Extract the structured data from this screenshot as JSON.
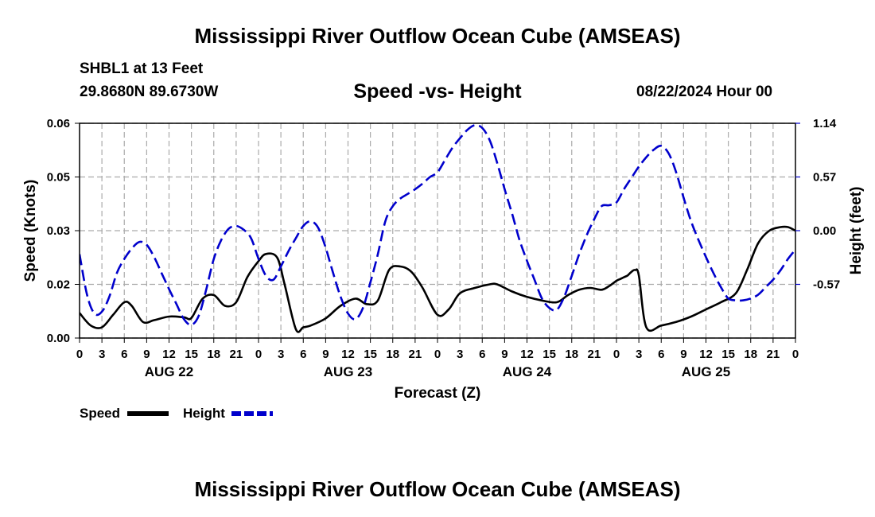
{
  "header": {
    "title": "Mississippi River Outflow Ocean Cube (AMSEAS)",
    "station": "SHBL1 at 13 Feet",
    "coords": "29.8680N  89.6730W",
    "subtitle": "Speed -vs- Height",
    "timestamp": "08/22/2024 Hour 00"
  },
  "footer": {
    "title": "Mississippi River Outflow Ocean Cube (AMSEAS)"
  },
  "chart_data": {
    "type": "line",
    "title": "Speed -vs- Height",
    "xlabel": "Forecast (Z)",
    "ylabel_left": "Speed (Knots)",
    "ylabel_right": "Height (feet)",
    "x_range_hours": [
      0,
      96
    ],
    "ylim_left": [
      0.0,
      0.06
    ],
    "ylim_right": [
      -1.14,
      1.14
    ],
    "left_ticks": [
      0.0,
      0.015,
      0.03,
      0.045,
      0.06
    ],
    "left_tick_labels": [
      "0.00",
      "0.02",
      "0.03",
      "0.05",
      "0.06"
    ],
    "right_ticks": [
      1.14,
      0.57,
      0.0,
      -0.57
    ],
    "right_tick_labels": [
      "1.14",
      "0.57",
      "0.00",
      "-0.57"
    ],
    "x_tick_labels": [
      "0",
      "3",
      "6",
      "9",
      "12",
      "15",
      "18",
      "21",
      "0",
      "3",
      "6",
      "9",
      "12",
      "15",
      "18",
      "21",
      "0",
      "3",
      "6",
      "9",
      "12",
      "15",
      "18",
      "21",
      "0",
      "3",
      "6",
      "9",
      "12",
      "15",
      "18",
      "21",
      "0"
    ],
    "days": [
      {
        "label": "AUG 22",
        "center_hour": 12
      },
      {
        "label": "AUG 23",
        "center_hour": 36
      },
      {
        "label": "AUG 24",
        "center_hour": 60
      },
      {
        "label": "AUG 25",
        "center_hour": 84
      }
    ],
    "grid": true,
    "colors": {
      "speed": "#000000",
      "height": "#0000cc",
      "grid": "#aaaaaa"
    },
    "legend": [
      {
        "label": "Speed",
        "series": "speed",
        "style": "solid"
      },
      {
        "label": "Height",
        "series": "height",
        "style": "dashed"
      }
    ],
    "series": [
      {
        "name": "Speed",
        "axis": "left",
        "units": "knots",
        "x": [
          0,
          1.5,
          3,
          4.5,
          6,
          7,
          8.5,
          10,
          12,
          14,
          15,
          16.5,
          18,
          19.5,
          21,
          22.5,
          24,
          25,
          26.5,
          27.5,
          29,
          30,
          31,
          33,
          35,
          37,
          38.5,
          40,
          41.5,
          43,
          44.5,
          46,
          48,
          49.5,
          51,
          53,
          55,
          56,
          58,
          60,
          62,
          64,
          65.5,
          67,
          68.5,
          70,
          71,
          72,
          72.5,
          73,
          73.5,
          74,
          74.5,
          75,
          76,
          78,
          80,
          82,
          84,
          86,
          88,
          89.5,
          91,
          92.5,
          94,
          95,
          96
        ],
        "values": [
          0.007,
          0.0035,
          0.003,
          0.0065,
          0.01,
          0.009,
          0.0045,
          0.005,
          0.006,
          0.0058,
          0.0056,
          0.011,
          0.012,
          0.009,
          0.01,
          0.017,
          0.0215,
          0.0235,
          0.0225,
          0.015,
          0.0025,
          0.003,
          0.0035,
          0.0055,
          0.009,
          0.011,
          0.0095,
          0.0105,
          0.019,
          0.02,
          0.0185,
          0.014,
          0.0065,
          0.008,
          0.0125,
          0.014,
          0.015,
          0.015,
          0.013,
          0.0115,
          0.0105,
          0.01,
          0.012,
          0.0135,
          0.014,
          0.0135,
          0.0145,
          0.016,
          0.0165,
          0.017,
          0.0175,
          0.0185,
          0.019,
          0.0175,
          0.003,
          0.0035,
          0.0045,
          0.006,
          0.008,
          0.01,
          0.0125,
          0.019,
          0.0265,
          0.03,
          0.031,
          0.031,
          0.03
        ]
      },
      {
        "name": "Height",
        "axis": "right",
        "units": "feet",
        "x": [
          0,
          1,
          2,
          3,
          4,
          5,
          6,
          7,
          8,
          9,
          10,
          11,
          12,
          13,
          14,
          15,
          16,
          17,
          18,
          19,
          20,
          21,
          22,
          23,
          24,
          25,
          26,
          27,
          28,
          29,
          30,
          31,
          32,
          33,
          34,
          35,
          36,
          37,
          38,
          39,
          40,
          41,
          42,
          43,
          44,
          45,
          46,
          47,
          48,
          49,
          50,
          51,
          52,
          53,
          54,
          55,
          56,
          57,
          58,
          59,
          60,
          61,
          62,
          63,
          64,
          65,
          66,
          67,
          68,
          69,
          70,
          71,
          72,
          73,
          74,
          75,
          76,
          77,
          78,
          79,
          80,
          81,
          82,
          83,
          84,
          85,
          86,
          87,
          88,
          89,
          90,
          91,
          92,
          93,
          94,
          95,
          96
        ],
        "values": [
          -0.25,
          -0.68,
          -0.88,
          -0.86,
          -0.7,
          -0.45,
          -0.3,
          -0.19,
          -0.12,
          -0.15,
          -0.28,
          -0.45,
          -0.62,
          -0.78,
          -0.94,
          -1.0,
          -0.9,
          -0.62,
          -0.3,
          -0.1,
          0.02,
          0.05,
          0.01,
          -0.08,
          -0.3,
          -0.48,
          -0.52,
          -0.38,
          -0.22,
          -0.08,
          0.05,
          0.1,
          0.03,
          -0.18,
          -0.45,
          -0.7,
          -0.88,
          -0.94,
          -0.82,
          -0.55,
          -0.25,
          0.1,
          0.26,
          0.34,
          0.39,
          0.44,
          0.5,
          0.57,
          0.62,
          0.75,
          0.88,
          0.98,
          1.07,
          1.12,
          1.09,
          0.96,
          0.72,
          0.44,
          0.18,
          -0.1,
          -0.32,
          -0.52,
          -0.72,
          -0.82,
          -0.84,
          -0.7,
          -0.48,
          -0.25,
          -0.05,
          0.12,
          0.26,
          0.27,
          0.3,
          0.44,
          0.56,
          0.68,
          0.78,
          0.86,
          0.9,
          0.82,
          0.62,
          0.35,
          0.1,
          -0.1,
          -0.28,
          -0.45,
          -0.6,
          -0.72,
          -0.74,
          -0.74,
          -0.72,
          -0.68,
          -0.6,
          -0.52,
          -0.42,
          -0.3,
          -0.2
        ]
      }
    ]
  }
}
